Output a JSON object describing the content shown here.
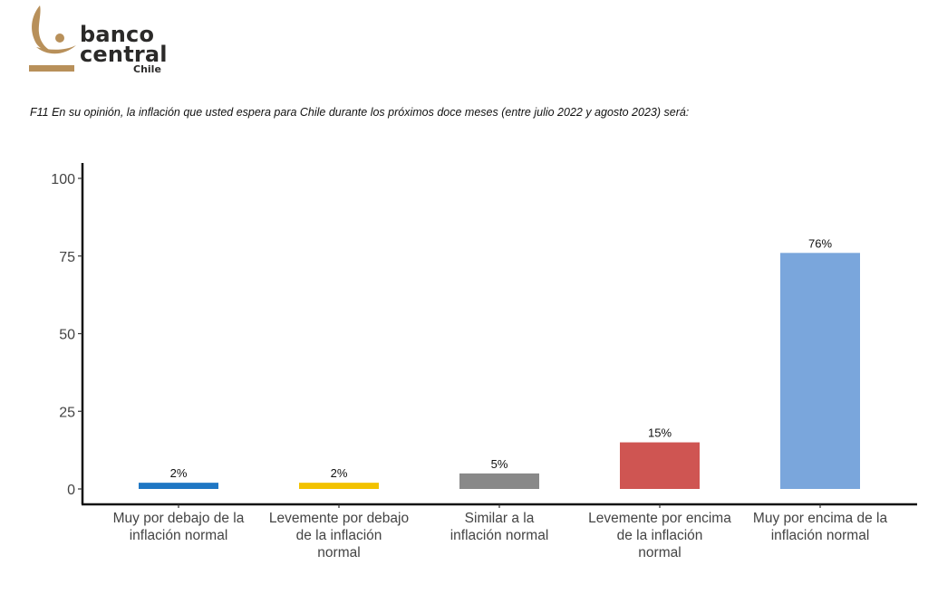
{
  "logo": {
    "line1": "banco",
    "line2": "central",
    "line3": "Chile",
    "gold": "#b8905a"
  },
  "question": "F11 En su opinión, la inflación que usted espera para Chile durante los próximos doce meses (entre julio 2022 y agosto 2023) será:",
  "chart_data": {
    "type": "bar",
    "title": "",
    "xlabel": "",
    "ylabel": "",
    "ylim": [
      0,
      100
    ],
    "yticks": [
      "0",
      "25",
      "50",
      "75",
      "100"
    ],
    "grid": false,
    "categories": [
      [
        "Muy por debajo de la",
        "inflación normal"
      ],
      [
        "Levemente por debajo",
        "de la inflación",
        "normal"
      ],
      [
        "Similar a la",
        "inflación normal"
      ],
      [
        "Levemente por encima",
        "de la inflación",
        "normal"
      ],
      [
        "Muy por encima de la",
        "inflación normal"
      ]
    ],
    "values": [
      2,
      2,
      5,
      15,
      76
    ],
    "labels": [
      "2%",
      "2%",
      "5%",
      "15%",
      "76%"
    ],
    "colors": [
      "#1f77c4",
      "#f2c200",
      "#898989",
      "#cf5552",
      "#7aa6dc"
    ]
  }
}
